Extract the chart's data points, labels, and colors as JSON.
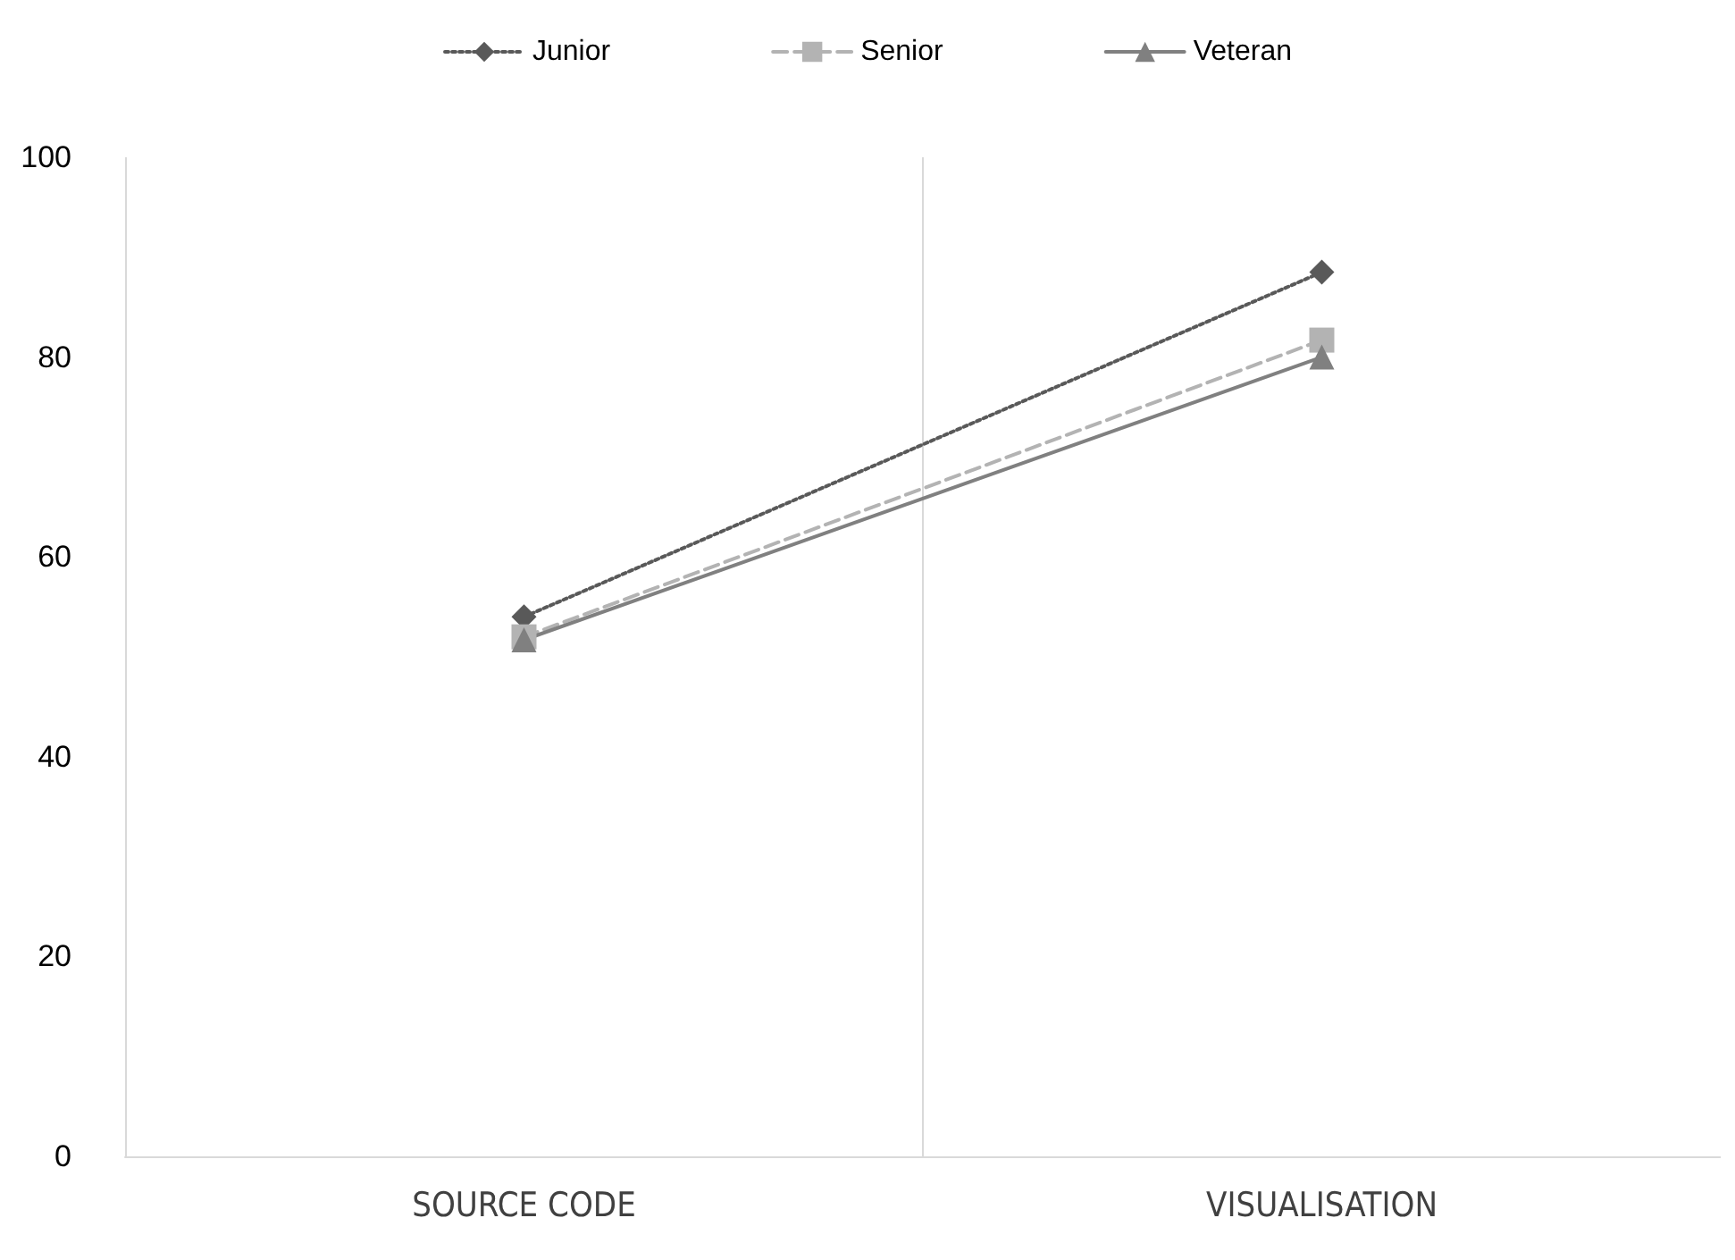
{
  "chart_data": {
    "type": "line",
    "categories": [
      "SOURCE CODE",
      "VISUALISATION"
    ],
    "series": [
      {
        "name": "Junior",
        "color": "#595959",
        "values": [
          54,
          88.5
        ],
        "marker": "diamond",
        "line_style": "dotted"
      },
      {
        "name": "Senior",
        "color": "#b3b3b3",
        "values": [
          52,
          81.7
        ],
        "marker": "square",
        "line_style": "dashed"
      },
      {
        "name": "Veteran",
        "color": "#808080",
        "values": [
          51.7,
          80
        ],
        "marker": "triangle",
        "line_style": "solid"
      }
    ],
    "ylim": [
      0,
      100
    ],
    "yticks": [
      0,
      20,
      40,
      60,
      80,
      100
    ],
    "grid": "x",
    "legend": "top"
  }
}
